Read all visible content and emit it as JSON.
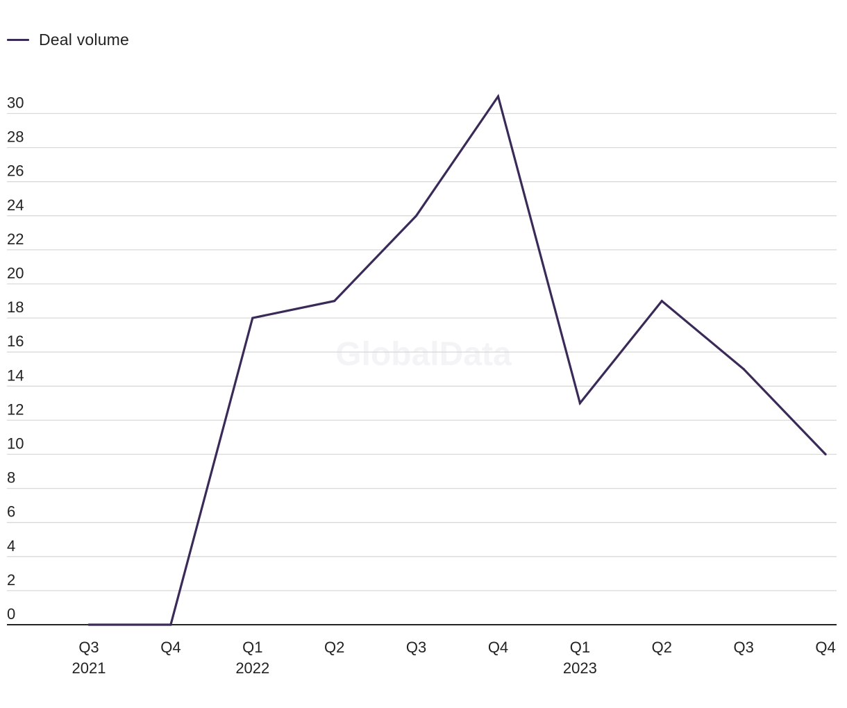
{
  "legend": {
    "label": "Deal volume"
  },
  "watermark": "GlobalData",
  "colors": {
    "line": "#3a2a58",
    "grid": "#d9d9d9",
    "axis": "#222222"
  },
  "chart_data": {
    "type": "line",
    "categories": [
      {
        "quarter": "Q3",
        "year": "2021"
      },
      {
        "quarter": "Q4",
        "year": ""
      },
      {
        "quarter": "Q1",
        "year": "2022"
      },
      {
        "quarter": "Q2",
        "year": ""
      },
      {
        "quarter": "Q3",
        "year": ""
      },
      {
        "quarter": "Q4",
        "year": ""
      },
      {
        "quarter": "Q1",
        "year": "2023"
      },
      {
        "quarter": "Q2",
        "year": ""
      },
      {
        "quarter": "Q3",
        "year": ""
      },
      {
        "quarter": "Q4",
        "year": ""
      }
    ],
    "series": [
      {
        "name": "Deal volume",
        "values": [
          0,
          0,
          18,
          19,
          24,
          31,
          13,
          19,
          15,
          10
        ]
      }
    ],
    "ylim": [
      0,
      30
    ],
    "yticks": [
      0,
      2,
      4,
      6,
      8,
      10,
      12,
      14,
      16,
      18,
      20,
      22,
      24,
      26,
      28,
      30
    ],
    "grid": true,
    "legend_position": "top-left",
    "title": "",
    "xlabel": "",
    "ylabel": ""
  }
}
